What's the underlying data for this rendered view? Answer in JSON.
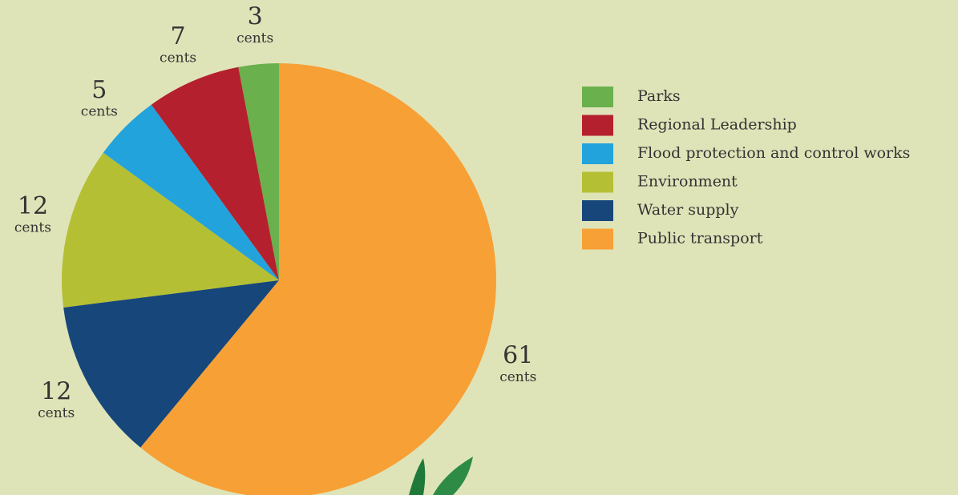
{
  "chart_data": {
    "type": "pie",
    "categories": [
      "Parks",
      "Regional Leadership",
      "Flood protection and control works",
      "Environment",
      "Water supply",
      "Public transport"
    ],
    "values": [
      3,
      7,
      5,
      12,
      12,
      61
    ],
    "colors": [
      "#6ab04c",
      "#b5202e",
      "#22a3dc",
      "#b5bf34",
      "#17467a",
      "#f7a036"
    ],
    "unit_label": "cents",
    "start_angle": "top",
    "direction": "counterclockwise",
    "legend": "right"
  }
}
